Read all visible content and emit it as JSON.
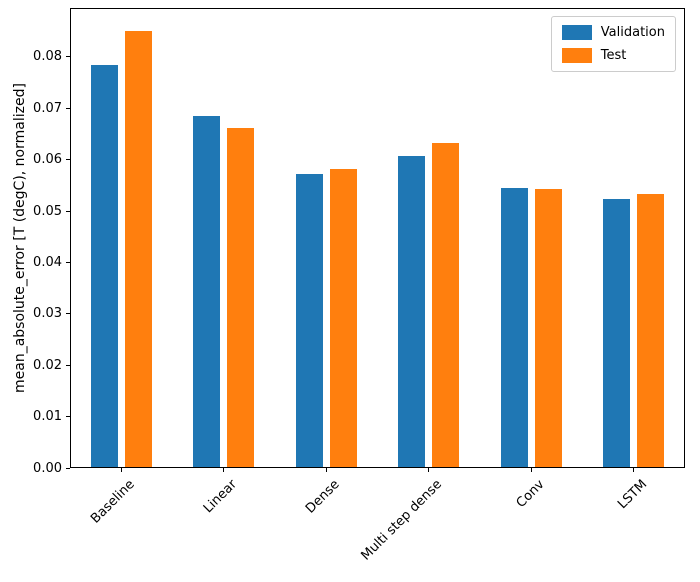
{
  "chart_data": {
    "type": "bar",
    "title": "",
    "xlabel": "",
    "ylabel": "mean_absolute_error [T (degC), normalized]",
    "categories": [
      "Baseline",
      "Linear",
      "Dense",
      "Multi step dense",
      "Conv",
      "LSTM"
    ],
    "series": [
      {
        "name": "Validation",
        "color": "#1f77b4",
        "values": [
          0.0785,
          0.0686,
          0.0572,
          0.0607,
          0.0545,
          0.0524
        ]
      },
      {
        "name": "Test",
        "color": "#ff7f0e",
        "values": [
          0.0852,
          0.0663,
          0.0583,
          0.0633,
          0.0543,
          0.0534
        ]
      }
    ],
    "ylim": [
      0,
      0.0895
    ],
    "yticks": [
      0.0,
      0.01,
      0.02,
      0.03,
      0.04,
      0.05,
      0.06,
      0.07,
      0.08
    ],
    "ytick_labels": [
      "0.00",
      "0.01",
      "0.02",
      "0.03",
      "0.04",
      "0.05",
      "0.06",
      "0.07",
      "0.08"
    ],
    "grid": false,
    "legend_position": "upper right"
  }
}
